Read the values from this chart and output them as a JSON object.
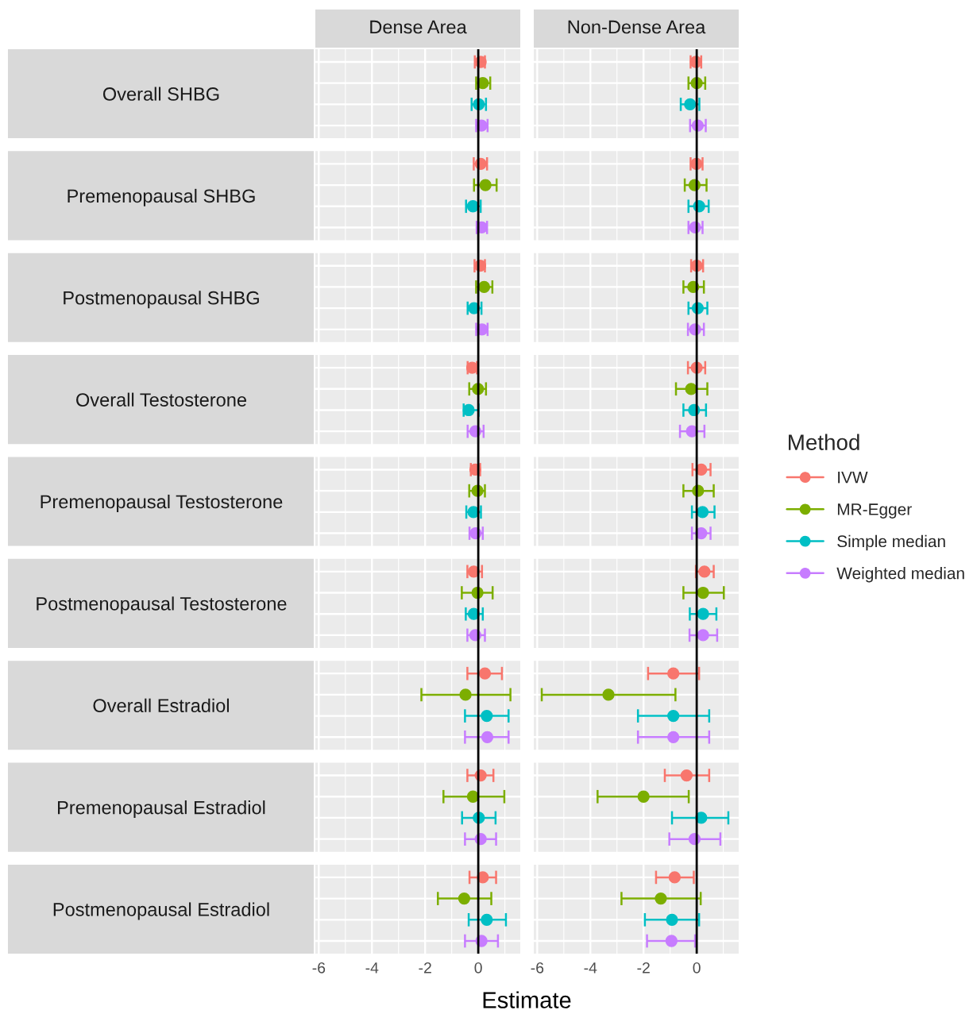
{
  "chart_data": [
    {
      "type": "scatter",
      "orientation": "horizontal",
      "title": "Dense Area",
      "xlabel": "Estimate",
      "categories": [
        "Overall SHBG",
        "Premenopausal SHBG",
        "Postmenopausal SHBG",
        "Overall Testosterone",
        "Premenopausal Testosterone",
        "Postmenopausal Testosterone",
        "Overall Estradiol",
        "Premenopausal Estradiol",
        "Postmenopausal Estradiol"
      ],
      "xlim": [
        -6.13,
        1.58
      ],
      "xticks": [
        -6,
        -4,
        -2,
        0
      ],
      "grid": true,
      "marker": "circle",
      "ref_lines": [
        {
          "axis": "x",
          "value": 0,
          "color": "#000000"
        }
      ],
      "series": [
        {
          "color": "#F8766D",
          "values": [
            0.09,
            0.09,
            0.07,
            -0.23,
            -0.11,
            -0.17,
            0.25,
            0.09,
            0.17
          ],
          "errors": [
            [
              -0.13,
              0.25
            ],
            [
              -0.17,
              0.33
            ],
            [
              -0.14,
              0.25
            ],
            [
              -0.4,
              -0.05
            ],
            [
              -0.28,
              0.07
            ],
            [
              -0.41,
              0.14
            ],
            [
              -0.41,
              0.89
            ],
            [
              -0.41,
              0.57
            ],
            [
              -0.33,
              0.67
            ]
          ]
        },
        {
          "color": "#7CAE00",
          "values": [
            0.17,
            0.27,
            0.22,
            -0.01,
            -0.03,
            -0.03,
            -0.48,
            -0.2,
            -0.53
          ],
          "errors": [
            [
              -0.08,
              0.45
            ],
            [
              -0.16,
              0.69
            ],
            [
              -0.08,
              0.53
            ],
            [
              -0.34,
              0.29
            ],
            [
              -0.34,
              0.25
            ],
            [
              -0.62,
              0.54
            ],
            [
              -2.14,
              1.21
            ],
            [
              -1.31,
              0.98
            ],
            [
              -1.52,
              0.49
            ]
          ]
        },
        {
          "color": "#00BFC4",
          "values": [
            0.02,
            -0.2,
            -0.16,
            -0.36,
            -0.18,
            -0.17,
            0.32,
            0.02,
            0.32
          ],
          "errors": [
            [
              -0.25,
              0.29
            ],
            [
              -0.46,
              0.09
            ],
            [
              -0.4,
              0.12
            ],
            [
              -0.55,
              0.01
            ],
            [
              -0.45,
              0.1
            ],
            [
              -0.47,
              0.17
            ],
            [
              -0.5,
              1.14
            ],
            [
              -0.61,
              0.65
            ],
            [
              -0.36,
              1.04
            ]
          ]
        },
        {
          "color": "#C77CFF",
          "values": [
            0.12,
            0.13,
            0.14,
            -0.11,
            -0.1,
            -0.11,
            0.34,
            0.09,
            0.12
          ],
          "errors": [
            [
              -0.08,
              0.35
            ],
            [
              -0.06,
              0.33
            ],
            [
              -0.08,
              0.35
            ],
            [
              -0.4,
              0.2
            ],
            [
              -0.33,
              0.17
            ],
            [
              -0.41,
              0.25
            ],
            [
              -0.5,
              1.14
            ],
            [
              -0.5,
              0.67
            ],
            [
              -0.5,
              0.74
            ]
          ]
        }
      ]
    },
    {
      "type": "scatter",
      "orientation": "horizontal",
      "title": "Non-Dense Area",
      "categories": [
        null,
        null,
        null,
        null,
        null,
        null,
        null,
        null,
        null
      ],
      "tick_labels": "x",
      "xlim": [
        -6.13,
        1.58
      ],
      "xticks": [
        -6,
        -4,
        -2,
        0
      ],
      "grid": true,
      "marker": "circle",
      "legend": "right",
      "legend_title": "Method",
      "ref_lines": [
        {
          "axis": "x",
          "value": 0,
          "color": "#000000"
        }
      ],
      "series": [
        {
          "name": "IVW",
          "color": "#F8766D",
          "values": [
            -0.03,
            -0.01,
            0,
            0,
            0.17,
            0.29,
            -0.88,
            -0.38,
            -0.83
          ],
          "errors": [
            [
              -0.23,
              0.17
            ],
            [
              -0.23,
              0.22
            ],
            [
              -0.21,
              0.24
            ],
            [
              -0.33,
              0.32
            ],
            [
              -0.16,
              0.52
            ],
            [
              -0.03,
              0.64
            ],
            [
              -1.83,
              0.09
            ],
            [
              -1.2,
              0.47
            ],
            [
              -1.53,
              -0.11
            ]
          ]
        },
        {
          "name": "MR-Egger",
          "color": "#7CAE00",
          "values": [
            0,
            -0.08,
            -0.13,
            -0.21,
            0.05,
            0.24,
            -3.32,
            -2.0,
            -1.35
          ],
          "errors": [
            [
              -0.31,
              0.32
            ],
            [
              -0.45,
              0.37
            ],
            [
              -0.5,
              0.27
            ],
            [
              -0.78,
              0.4
            ],
            [
              -0.5,
              0.64
            ],
            [
              -0.5,
              1.02
            ],
            [
              -5.83,
              -0.8
            ],
            [
              -3.73,
              -0.3
            ],
            [
              -2.83,
              0.15
            ]
          ]
        },
        {
          "name": "Simple median",
          "color": "#00BFC4",
          "values": [
            -0.25,
            0.09,
            0.04,
            -0.1,
            0.22,
            0.24,
            -0.88,
            0.17,
            -0.93
          ],
          "errors": [
            [
              -0.6,
              0.1
            ],
            [
              -0.31,
              0.45
            ],
            [
              -0.31,
              0.4
            ],
            [
              -0.5,
              0.35
            ],
            [
              -0.18,
              0.67
            ],
            [
              -0.26,
              0.74
            ],
            [
              -2.21,
              0.47
            ],
            [
              -0.93,
              1.19
            ],
            [
              -1.95,
              0.09
            ]
          ]
        },
        {
          "name": "Weighted median",
          "color": "#C77CFF",
          "values": [
            0.04,
            -0.06,
            -0.06,
            -0.18,
            0.17,
            0.24,
            -0.88,
            -0.08,
            -0.95
          ],
          "errors": [
            [
              -0.25,
              0.34
            ],
            [
              -0.31,
              0.22
            ],
            [
              -0.33,
              0.27
            ],
            [
              -0.63,
              0.29
            ],
            [
              -0.18,
              0.52
            ],
            [
              -0.27,
              0.77
            ],
            [
              -2.21,
              0.47
            ],
            [
              -1.03,
              0.89
            ],
            [
              -1.87,
              -0.06
            ]
          ]
        }
      ]
    }
  ]
}
